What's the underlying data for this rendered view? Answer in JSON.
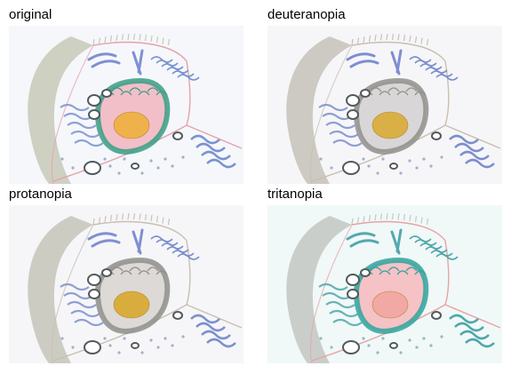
{
  "panels": [
    {
      "id": "p-original",
      "title": "original",
      "colors": {
        "bg": "#f5f7fb",
        "wall": "#c7c9b7",
        "membrane": "#e8a0aa",
        "nucleus": "#f2bfc9",
        "envelope": "#3a9d84",
        "nucleolus": "#efb14a",
        "golgi": "#7f8fd3",
        "er": "#7a93cf",
        "organelle": "#4f5a5f",
        "vesicle": "#9fb2c7"
      }
    },
    {
      "id": "p-deut",
      "title": "deuteranopia",
      "colors": {
        "bg": "#f6f6f9",
        "wall": "#c4c2b9",
        "membrane": "#c9bfae",
        "nucleus": "#d9d6d7",
        "envelope": "#8f8f8c",
        "nucleolus": "#d9b045",
        "golgi": "#7d8ed0",
        "er": "#7b8fcb",
        "organelle": "#55595c",
        "vesicle": "#a7b0c5"
      }
    },
    {
      "id": "p-prot",
      "title": "protanopia",
      "colors": {
        "bg": "#f6f6f9",
        "wall": "#c6c4b8",
        "membrane": "#c8bfae",
        "nucleus": "#dcd9d6",
        "envelope": "#8e8e8b",
        "nucleolus": "#d9ad3d",
        "golgi": "#7f8fd1",
        "er": "#7c90cc",
        "organelle": "#55595c",
        "vesicle": "#a7b0c5"
      }
    },
    {
      "id": "p-trit",
      "title": "tritanopia",
      "colors": {
        "bg": "#f1f8f8",
        "wall": "#c3c7c2",
        "membrane": "#e7a3a6",
        "nucleus": "#f5c2c5",
        "envelope": "#2fa39c",
        "nucleolus": "#f2a9a6",
        "golgi": "#53a9ae",
        "er": "#4fa7aa",
        "organelle": "#525a5b",
        "vesicle": "#97b9bb"
      }
    }
  ]
}
